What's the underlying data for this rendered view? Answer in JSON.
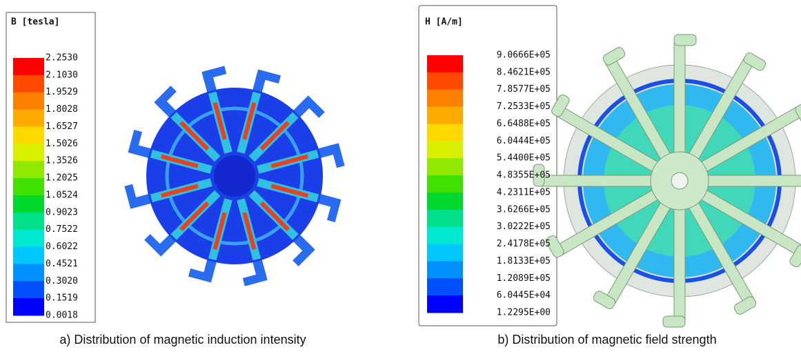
{
  "panels": [
    {
      "legend_title": "B [tesla]",
      "legend_labels": [
        "2.2530",
        "2.1030",
        "1.9529",
        "1.8028",
        "1.6527",
        "1.5026",
        "1.3526",
        "1.2025",
        "1.0524",
        "0.9023",
        "0.7522",
        "0.6022",
        "0.4521",
        "0.3020",
        "0.1519",
        "0.0018"
      ],
      "caption": "a) Distribution of magnetic induction intensity"
    },
    {
      "legend_title": "H [A/m]",
      "legend_labels": [
        "9.0666E+05",
        "8.4621E+05",
        "7.8577E+05",
        "7.2533E+05",
        "6.6488E+05",
        "6.0444E+05",
        "5.4400E+05",
        "4.8355E+05",
        "4.2311E+05",
        "3.6266E+05",
        "3.0222E+05",
        "2.4178E+05",
        "1.8133E+05",
        "1.2089E+05",
        "6.0445E+04",
        "1.2295E+00"
      ],
      "caption": "b) Distribution of magnetic field strength"
    }
  ]
}
